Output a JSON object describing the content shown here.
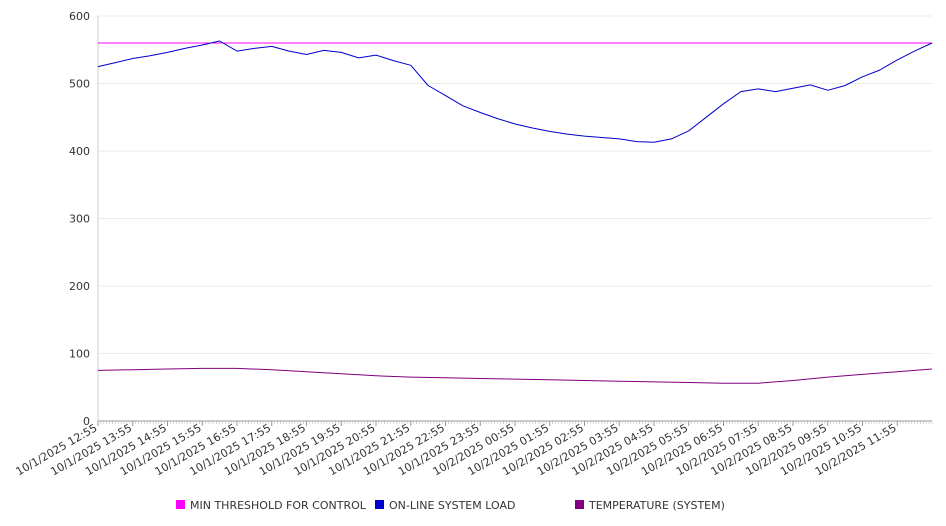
{
  "chart_data": {
    "type": "line",
    "title": "",
    "xlabel": "",
    "ylabel": "",
    "ylim": [
      0,
      600
    ],
    "yticks": [
      0,
      100,
      200,
      300,
      400,
      500,
      600
    ],
    "grid": true,
    "legend_position": "bottom",
    "xtick_labels": [
      "10/1/2025 12:55",
      "10/1/2025 13:55",
      "10/1/2025 14:55",
      "10/1/2025 15:55",
      "10/1/2025 16:55",
      "10/1/2025 17:55",
      "10/1/2025 18:55",
      "10/1/2025 19:55",
      "10/1/2025 20:55",
      "10/1/2025 21:55",
      "10/1/2025 22:55",
      "10/1/2025 23:55",
      "10/2/2025 00:55",
      "10/2/2025 01:55",
      "10/2/2025 02:55",
      "10/2/2025 03:55",
      "10/2/2025 04:55",
      "10/2/2025 05:55",
      "10/2/2025 06:55",
      "10/2/2025 07:55",
      "10/2/2025 08:55",
      "10/2/2025 09:55",
      "10/2/2025 10:55",
      "10/2/2025 11:55"
    ],
    "series": [
      {
        "name": "MIN THRESHOLD FOR CONTROL",
        "color": "#ff00ff",
        "x": [
          "10/1/2025 12:55",
          "10/2/2025 12:55"
        ],
        "values": [
          560,
          560
        ]
      },
      {
        "name": "ON-LINE SYSTEM LOAD",
        "color": "#0000cc",
        "x": [
          "10/1/2025 12:55",
          "10/1/2025 13:25",
          "10/1/2025 13:55",
          "10/1/2025 14:25",
          "10/1/2025 14:55",
          "10/1/2025 15:25",
          "10/1/2025 15:55",
          "10/1/2025 16:25",
          "10/1/2025 16:55",
          "10/1/2025 17:25",
          "10/1/2025 17:55",
          "10/1/2025 18:25",
          "10/1/2025 18:55",
          "10/1/2025 19:25",
          "10/1/2025 19:55",
          "10/1/2025 20:25",
          "10/1/2025 20:55",
          "10/1/2025 21:25",
          "10/1/2025 21:55",
          "10/1/2025 22:25",
          "10/1/2025 22:55",
          "10/1/2025 23:25",
          "10/1/2025 23:55",
          "10/2/2025 00:25",
          "10/2/2025 00:55",
          "10/2/2025 01:25",
          "10/2/2025 01:55",
          "10/2/2025 02:25",
          "10/2/2025 02:55",
          "10/2/2025 03:25",
          "10/2/2025 03:55",
          "10/2/2025 04:25",
          "10/2/2025 04:55",
          "10/2/2025 05:25",
          "10/2/2025 05:55",
          "10/2/2025 06:25",
          "10/2/2025 06:55",
          "10/2/2025 07:25",
          "10/2/2025 07:55",
          "10/2/2025 08:25",
          "10/2/2025 08:55",
          "10/2/2025 09:25",
          "10/2/2025 09:55",
          "10/2/2025 10:25",
          "10/2/2025 10:55",
          "10/2/2025 11:25",
          "10/2/2025 11:55",
          "10/2/2025 12:25",
          "10/2/2025 12:55"
        ],
        "values": [
          525,
          531,
          537,
          541,
          546,
          552,
          557,
          563,
          548,
          552,
          555,
          548,
          543,
          549,
          546,
          538,
          542,
          534,
          527,
          497,
          482,
          467,
          457,
          448,
          440,
          434,
          429,
          425,
          422,
          420,
          418,
          414,
          413,
          418,
          430,
          450,
          470,
          488,
          492,
          488,
          493,
          498,
          490,
          497,
          510,
          520,
          535,
          548,
          560
        ]
      },
      {
        "name": "TEMPERATURE (SYSTEM)",
        "color": "#800080",
        "x": [
          "10/1/2025 12:55",
          "10/1/2025 13:55",
          "10/1/2025 14:55",
          "10/1/2025 15:55",
          "10/1/2025 16:55",
          "10/1/2025 17:55",
          "10/1/2025 18:55",
          "10/1/2025 19:55",
          "10/1/2025 20:55",
          "10/1/2025 21:55",
          "10/1/2025 22:55",
          "10/1/2025 23:55",
          "10/2/2025 00:55",
          "10/2/2025 01:55",
          "10/2/2025 02:55",
          "10/2/2025 03:55",
          "10/2/2025 04:55",
          "10/2/2025 05:55",
          "10/2/2025 06:55",
          "10/2/2025 07:55",
          "10/2/2025 08:55",
          "10/2/2025 09:55",
          "10/2/2025 10:55",
          "10/2/2025 11:55",
          "10/2/2025 12:55"
        ],
        "values": [
          75,
          76,
          77,
          78,
          78,
          76,
          73,
          70,
          67,
          65,
          64,
          63,
          62,
          61,
          60,
          59,
          58,
          57,
          56,
          56,
          60,
          65,
          69,
          73,
          77
        ]
      }
    ]
  }
}
